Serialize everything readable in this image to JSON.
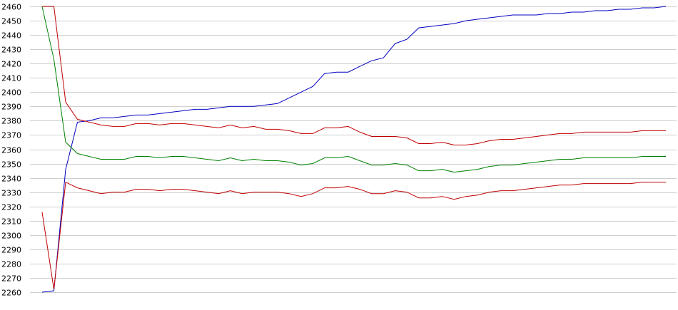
{
  "chart_data": {
    "type": "line",
    "title": "",
    "xlabel": "",
    "ylabel": "",
    "ylim": [
      2260,
      2460
    ],
    "yticks": [
      2460,
      2450,
      2440,
      2430,
      2420,
      2410,
      2400,
      2390,
      2380,
      2370,
      2360,
      2350,
      2340,
      2330,
      2320,
      2310,
      2300,
      2290,
      2280,
      2270,
      2260
    ],
    "grid": true,
    "legend": "none",
    "x": [
      0,
      1,
      2,
      3,
      4,
      5,
      6,
      7,
      8,
      9,
      10,
      11,
      12,
      13,
      14,
      15,
      16,
      17,
      18,
      19,
      20,
      21,
      22,
      23,
      24,
      25,
      26,
      27,
      28,
      29,
      30,
      31,
      32,
      33,
      34,
      35,
      36,
      37,
      38,
      39,
      40,
      41,
      42,
      43,
      44,
      45,
      46,
      47,
      48,
      49,
      50,
      51,
      52,
      53
    ],
    "series": [
      {
        "color": "#0000c0",
        "values": [
          2260,
          2261,
          2346,
          2379,
          2380,
          2382,
          2382,
          2383,
          2384,
          2384,
          2385,
          2386,
          2387,
          2388,
          2388,
          2389,
          2390,
          2390,
          2390,
          2391,
          2392,
          2396,
          2400,
          2404,
          2413,
          2414,
          2414,
          2418,
          2422,
          2424,
          2434,
          2437,
          2445,
          2446,
          2447,
          2448,
          2450,
          2451,
          2452,
          2453,
          2454,
          2454,
          2454,
          2455,
          2455,
          2456,
          2456,
          2457,
          2457,
          2458,
          2458,
          2459,
          2459,
          2460
        ]
      },
      {
        "color": "#c00000",
        "values": [
          2460,
          2460,
          2393,
          2381,
          2379,
          2377,
          2376,
          2376,
          2378,
          2378,
          2377,
          2378,
          2378,
          2377,
          2376,
          2375,
          2377,
          2375,
          2376,
          2374,
          2374,
          2373,
          2371,
          2371,
          2375,
          2375,
          2376,
          2372,
          2369,
          2369,
          2369,
          2368,
          2364,
          2364,
          2365,
          2363,
          2363,
          2364,
          2366,
          2367,
          2367,
          2368,
          2369,
          2370,
          2371,
          2371,
          2372,
          2372,
          2372,
          2372,
          2372,
          2373,
          2373,
          2373
        ]
      },
      {
        "color": "#008000",
        "values": [
          2460,
          2423,
          2365,
          2357,
          2355,
          2353,
          2353,
          2353,
          2355,
          2355,
          2354,
          2355,
          2355,
          2354,
          2353,
          2352,
          2354,
          2352,
          2353,
          2352,
          2352,
          2351,
          2349,
          2350,
          2354,
          2354,
          2355,
          2352,
          2349,
          2349,
          2350,
          2349,
          2345,
          2345,
          2346,
          2344,
          2345,
          2346,
          2348,
          2349,
          2349,
          2350,
          2351,
          2352,
          2353,
          2353,
          2354,
          2354,
          2354,
          2354,
          2354,
          2355,
          2355,
          2355
        ]
      },
      {
        "color": "#c00000",
        "values": [
          2316,
          2262,
          2337,
          2333,
          2331,
          2329,
          2330,
          2330,
          2332,
          2332,
          2331,
          2332,
          2332,
          2331,
          2330,
          2329,
          2331,
          2329,
          2330,
          2330,
          2330,
          2329,
          2327,
          2329,
          2333,
          2333,
          2334,
          2332,
          2329,
          2329,
          2331,
          2330,
          2326,
          2326,
          2327,
          2325,
          2327,
          2328,
          2330,
          2331,
          2331,
          2332,
          2333,
          2334,
          2335,
          2335,
          2336,
          2336,
          2336,
          2336,
          2336,
          2337,
          2337,
          2337
        ]
      }
    ]
  }
}
